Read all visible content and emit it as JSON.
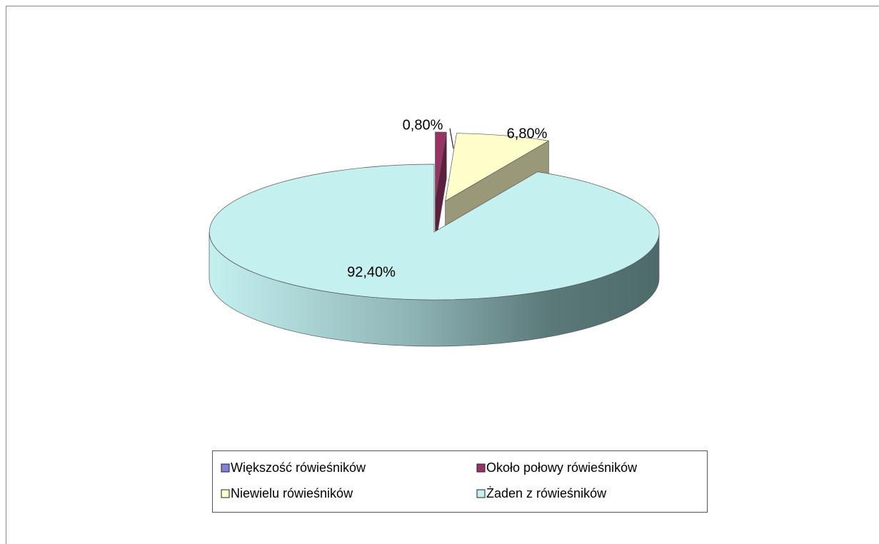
{
  "chart_data": {
    "type": "pie3d",
    "categories": [
      "Większość rówieśników",
      "Około połowy rówieśników",
      "Niewielu  rówieśników",
      "Żaden z rówieśników"
    ],
    "values": [
      0,
      0.8,
      6.8,
      92.4
    ],
    "value_labels": [
      null,
      "0,80%",
      "6,80%",
      "92,40%"
    ],
    "colors": [
      "#8080e0",
      "#993366",
      "#ffffcc",
      "#c4f0f0"
    ],
    "legend": "bottom"
  }
}
